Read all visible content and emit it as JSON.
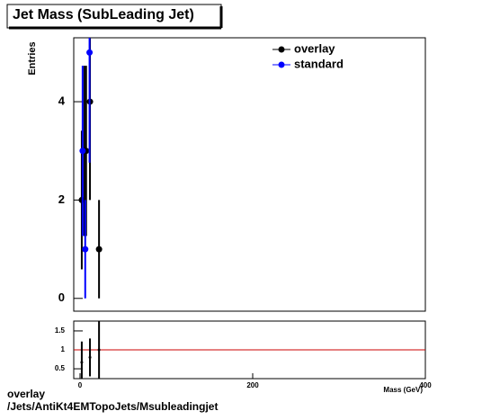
{
  "chart_data": [
    {
      "type": "scatter",
      "title": "Jet Mass (SubLeading Jet)",
      "y_label": "Entries",
      "xlim": [
        -7.3,
        400
      ],
      "ylim": [
        -0.26,
        5.3
      ],
      "yticks": [
        0,
        2,
        4
      ],
      "legend": "top-right",
      "series": [
        {
          "name": "overlay",
          "color": "#000000",
          "x": [
            2,
            5,
            7,
            11.5,
            22
          ],
          "values": [
            2,
            3,
            3,
            4,
            1
          ],
          "errors": [
            1.41,
            1.73,
            1.73,
            2,
            1
          ]
        },
        {
          "name": "standard",
          "color": "#0000ff",
          "x": [
            3,
            6,
            11
          ],
          "values": [
            3,
            1,
            5
          ],
          "errors": [
            1.73,
            1,
            2.24
          ]
        }
      ]
    },
    {
      "type": "scatter",
      "x_label": "Mass (GeV)",
      "xlim": [
        -7.3,
        400
      ],
      "xticks": [
        0,
        200,
        400
      ],
      "ylim": [
        0.24,
        1.76
      ],
      "yticks": [
        0.5,
        1,
        1.5
      ],
      "reference_line": 1,
      "reference_color": "#cc0000",
      "series": [
        {
          "color": "#000000",
          "x": [
            2,
            11.5,
            22
          ],
          "values": [
            0.67,
            0.8,
            1
          ],
          "errors": [
            0.55,
            0.5,
            1.4
          ]
        }
      ]
    }
  ],
  "footer": {
    "line1": "overlay",
    "line2": "/Jets/AntiKt4EMTopoJets/Msubleadingjet"
  }
}
